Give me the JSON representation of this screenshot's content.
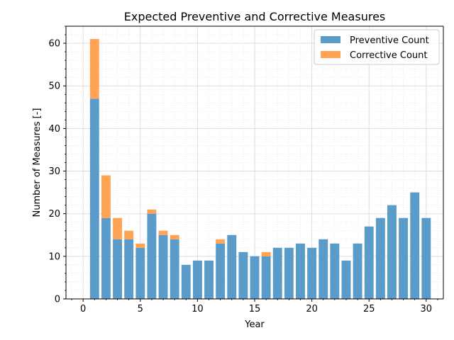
{
  "chart_data": {
    "type": "bar",
    "stacked": true,
    "title": "Expected Preventive and Corrective Measures",
    "xlabel": "Year",
    "ylabel": "Number of Measures [-]",
    "xlim": [
      -1.5,
      31.5
    ],
    "ylim": [
      0,
      64
    ],
    "x_ticks": [
      0,
      5,
      10,
      15,
      20,
      25,
      30
    ],
    "y_ticks": [
      0,
      10,
      20,
      30,
      40,
      50,
      60
    ],
    "grid": true,
    "minor_grid": true,
    "legend_position": "top-right",
    "x": [
      1,
      2,
      3,
      4,
      5,
      6,
      7,
      8,
      9,
      10,
      11,
      12,
      13,
      14,
      15,
      16,
      17,
      18,
      19,
      20,
      21,
      22,
      23,
      24,
      25,
      26,
      27,
      28,
      29,
      30
    ],
    "series": [
      {
        "name": "Preventive Count",
        "color": "#5b9bc9",
        "values": [
          47,
          19,
          14,
          14,
          12,
          20,
          15,
          14,
          8,
          9,
          9,
          13,
          15,
          11,
          10,
          10,
          12,
          12,
          13,
          12,
          14,
          13,
          9,
          13,
          17,
          19,
          22,
          19,
          25,
          19
        ]
      },
      {
        "name": "Corrective Count",
        "color": "#ffa455",
        "values": [
          14,
          10,
          5,
          2,
          1,
          1,
          1,
          1,
          0,
          0,
          0,
          1,
          0,
          0,
          0,
          1,
          0,
          0,
          0,
          0,
          0,
          0,
          0,
          0,
          0,
          0,
          0,
          0,
          0,
          0
        ]
      }
    ]
  }
}
